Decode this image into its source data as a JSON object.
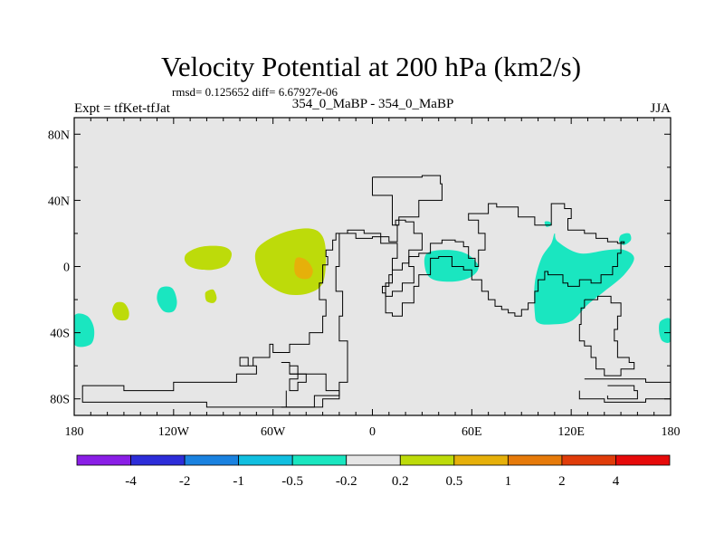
{
  "chart_data": {
    "type": "contour-map",
    "title": "Velocity Potential at 200 hPa (km2/s)",
    "stats_text": "rmsd= 0.125652 diff= 6.67927e-06",
    "left_label": "Expt = tfKet-tfJat",
    "center_label": "354_0_MaBP - 354_0_MaBP",
    "right_label": "JJA",
    "lon_range": [
      -180,
      180
    ],
    "lat_range": [
      -90,
      90
    ],
    "x_ticks": [
      {
        "value": -180,
        "label": "180"
      },
      {
        "value": -120,
        "label": "120W"
      },
      {
        "value": -60,
        "label": "60W"
      },
      {
        "value": 0,
        "label": "0"
      },
      {
        "value": 60,
        "label": "60E"
      },
      {
        "value": 120,
        "label": "120E"
      },
      {
        "value": 180,
        "label": "180"
      }
    ],
    "y_ticks": [
      {
        "value": 80,
        "label": "80N"
      },
      {
        "value": 40,
        "label": "40N"
      },
      {
        "value": 0,
        "label": "0"
      },
      {
        "value": -40,
        "label": "40S"
      },
      {
        "value": -80,
        "label": "80S"
      }
    ],
    "background_color": "#e6e6e6",
    "colorbar": {
      "colors": [
        "#8a1ee6",
        "#2d2dd9",
        "#1a82e0",
        "#11bfe0",
        "#1ae6c0",
        "#e6e6e6",
        "#bddb0a",
        "#e6b00a",
        "#e67a0a",
        "#e03c0a",
        "#e60a0a"
      ],
      "tick_labels": [
        "-4",
        "-2",
        "-1",
        "-0.5",
        "-0.2",
        "0.2",
        "0.5",
        "1",
        "2",
        "4"
      ]
    },
    "regions": [
      {
        "fill": "#bddb0a",
        "points": [
          [
            -70,
            10
          ],
          [
            -55,
            20
          ],
          [
            -38,
            23
          ],
          [
            -30,
            18
          ],
          [
            -28,
            5
          ],
          [
            -30,
            -10
          ],
          [
            -38,
            -16
          ],
          [
            -50,
            -17
          ],
          [
            -60,
            -13
          ],
          [
            -68,
            -5
          ]
        ]
      },
      {
        "fill": "#e6b00a",
        "points": [
          [
            -46,
            5
          ],
          [
            -40,
            4
          ],
          [
            -36,
            -2
          ],
          [
            -38,
            -7
          ],
          [
            -44,
            -7
          ],
          [
            -47,
            -3
          ]
        ]
      },
      {
        "fill": "#bddb0a",
        "points": [
          [
            -112,
            8
          ],
          [
            -103,
            12
          ],
          [
            -90,
            12
          ],
          [
            -85,
            8
          ],
          [
            -88,
            1
          ],
          [
            -97,
            -2
          ],
          [
            -108,
            -1
          ],
          [
            -113,
            3
          ]
        ]
      },
      {
        "fill": "#bddb0a",
        "points": [
          [
            -155,
            -22
          ],
          [
            -150,
            -22
          ],
          [
            -147,
            -27
          ],
          [
            -148,
            -32
          ],
          [
            -154,
            -32
          ],
          [
            -157,
            -27
          ]
        ]
      },
      {
        "fill": "#bddb0a",
        "points": [
          [
            -100,
            -15
          ],
          [
            -96,
            -14
          ],
          [
            -94,
            -19
          ],
          [
            -96,
            -22
          ],
          [
            -100,
            -21
          ],
          [
            -101,
            -17
          ]
        ]
      },
      {
        "fill": "#1ae6c0",
        "points": [
          [
            -128,
            -13
          ],
          [
            -121,
            -13
          ],
          [
            -118,
            -21
          ],
          [
            -120,
            -27
          ],
          [
            -126,
            -27
          ],
          [
            -130,
            -20
          ]
        ]
      },
      {
        "fill": "#1ae6c0",
        "points": [
          [
            -180,
            -30
          ],
          [
            -172,
            -30
          ],
          [
            -168,
            -38
          ],
          [
            -170,
            -47
          ],
          [
            -180,
            -47
          ]
        ]
      },
      {
        "fill": "#1ae6c0",
        "points": [
          [
            180,
            -32
          ],
          [
            174,
            -33
          ],
          [
            173,
            -39
          ],
          [
            175,
            -45
          ],
          [
            180,
            -45
          ]
        ]
      },
      {
        "fill": "#1ae6c0",
        "points": [
          [
            33,
            8
          ],
          [
            47,
            10
          ],
          [
            58,
            7
          ],
          [
            64,
            0
          ],
          [
            60,
            -6
          ],
          [
            50,
            -9
          ],
          [
            37,
            -8
          ],
          [
            32,
            -2
          ]
        ]
      },
      {
        "fill": "#1ae6c0",
        "points": [
          [
            110,
            20
          ],
          [
            112,
            15
          ],
          [
            125,
            8
          ],
          [
            142,
            10
          ],
          [
            152,
            10
          ],
          [
            158,
            5
          ],
          [
            152,
            -5
          ],
          [
            140,
            -15
          ],
          [
            130,
            -23
          ],
          [
            120,
            -33
          ],
          [
            108,
            -35
          ],
          [
            100,
            -34
          ],
          [
            98,
            -28
          ],
          [
            98,
            -10
          ],
          [
            102,
            5
          ],
          [
            108,
            14
          ]
        ]
      },
      {
        "fill": "#1ae6c0",
        "points": [
          [
            104,
            27
          ],
          [
            107,
            27
          ],
          [
            108,
            25
          ],
          [
            105,
            24
          ]
        ]
      },
      {
        "fill": "#1ae6c0",
        "points": [
          [
            150,
            19
          ],
          [
            155,
            20
          ],
          [
            156,
            16
          ],
          [
            152,
            13
          ],
          [
            149,
            15
          ]
        ]
      }
    ],
    "coastlines": [
      [
        [
          0,
          54
        ],
        [
          30,
          55
        ],
        [
          41,
          50
        ],
        [
          42,
          40
        ],
        [
          28,
          30
        ],
        [
          16,
          25
        ],
        [
          12,
          43
        ],
        [
          0,
          45
        ],
        [
          0,
          54
        ]
      ],
      [
        [
          -20,
          20
        ],
        [
          -10,
          17
        ],
        [
          0,
          18
        ],
        [
          10,
          15
        ],
        [
          15,
          25
        ],
        [
          14,
          28
        ],
        [
          20,
          27
        ],
        [
          25,
          20
        ],
        [
          30,
          10
        ],
        [
          22,
          0
        ],
        [
          25,
          -10
        ],
        [
          18,
          -15
        ],
        [
          12,
          -18
        ],
        [
          8,
          -16
        ],
        [
          6,
          -12
        ],
        [
          10,
          -5
        ],
        [
          12,
          5
        ],
        [
          15,
          14
        ],
        [
          5,
          20
        ],
        [
          -5,
          22
        ],
        [
          -15,
          20
        ],
        [
          -22,
          16
        ],
        [
          -24,
          10
        ],
        [
          -28,
          6
        ],
        [
          -27,
          1
        ],
        [
          -30,
          -10
        ],
        [
          -32,
          -20
        ],
        [
          -28,
          -30
        ],
        [
          -30,
          -40
        ],
        [
          -38,
          -47
        ],
        [
          -50,
          -52
        ],
        [
          -60,
          -47
        ],
        [
          -62,
          -55
        ],
        [
          -72,
          -60
        ],
        [
          -80,
          -55
        ],
        [
          -75,
          -60
        ],
        [
          -70,
          -65
        ],
        [
          -82,
          -70
        ],
        [
          -120,
          -75
        ],
        [
          -150,
          -72
        ],
        [
          -175,
          -78
        ],
        [
          -175,
          -82
        ],
        [
          -100,
          -85
        ],
        [
          -60,
          -85
        ],
        [
          -30,
          -80
        ],
        [
          -20,
          -70
        ],
        [
          -15,
          -60
        ],
        [
          -15,
          -45
        ],
        [
          -20,
          -30
        ],
        [
          -18,
          -15
        ],
        [
          -22,
          0
        ],
        [
          -20,
          10
        ],
        [
          -20,
          20
        ]
      ],
      [
        [
          -55,
          -58
        ],
        [
          -50,
          -60
        ],
        [
          -45,
          -68
        ],
        [
          -50,
          -75
        ],
        [
          -45,
          -70
        ],
        [
          -40,
          -65
        ],
        [
          -50,
          -58
        ]
      ],
      [
        [
          -50,
          -65
        ],
        [
          -35,
          -65
        ],
        [
          -28,
          -75
        ],
        [
          -20,
          -78
        ],
        [
          -35,
          -85
        ],
        [
          -55,
          -85
        ],
        [
          -52,
          -75
        ]
      ],
      [
        [
          60,
          32
        ],
        [
          70,
          38
        ],
        [
          75,
          36
        ],
        [
          88,
          30
        ],
        [
          98,
          25
        ],
        [
          108,
          28
        ],
        [
          108,
          38
        ],
        [
          116,
          35
        ],
        [
          120,
          29
        ],
        [
          118,
          22
        ],
        [
          128,
          20
        ],
        [
          135,
          17
        ],
        [
          142,
          15
        ],
        [
          148,
          14
        ],
        [
          152,
          15
        ],
        [
          150,
          8
        ],
        [
          148,
          0
        ],
        [
          145,
          -5
        ],
        [
          138,
          -10
        ],
        [
          132,
          -8
        ],
        [
          125,
          -12
        ],
        [
          118,
          -10
        ],
        [
          115,
          -5
        ],
        [
          106,
          -3
        ],
        [
          104,
          -8
        ],
        [
          100,
          -15
        ],
        [
          98,
          -22
        ],
        [
          94,
          -26
        ],
        [
          90,
          -30
        ],
        [
          86,
          -28
        ],
        [
          82,
          -26
        ],
        [
          78,
          -24
        ],
        [
          74,
          -20
        ],
        [
          70,
          -15
        ],
        [
          66,
          -8
        ],
        [
          60,
          -2
        ],
        [
          55,
          0
        ],
        [
          48,
          6
        ],
        [
          40,
          5
        ],
        [
          35,
          -5
        ],
        [
          28,
          -12
        ],
        [
          25,
          -22
        ],
        [
          18,
          -30
        ],
        [
          12,
          -28
        ],
        [
          8,
          -20
        ],
        [
          8,
          -10
        ],
        [
          12,
          -2
        ],
        [
          18,
          2
        ],
        [
          22,
          6
        ],
        [
          28,
          8
        ],
        [
          35,
          14
        ],
        [
          42,
          16
        ],
        [
          50,
          15
        ],
        [
          55,
          12
        ],
        [
          58,
          5
        ],
        [
          62,
          0
        ],
        [
          64,
          10
        ],
        [
          68,
          20
        ],
        [
          64,
          28
        ],
        [
          58,
          32
        ],
        [
          60,
          32
        ]
      ],
      [
        [
          128,
          -20
        ],
        [
          136,
          -18
        ],
        [
          144,
          -22
        ],
        [
          150,
          -30
        ],
        [
          148,
          -38
        ],
        [
          146,
          -45
        ],
        [
          148,
          -55
        ],
        [
          155,
          -58
        ],
        [
          158,
          -62
        ],
        [
          150,
          -66
        ],
        [
          140,
          -62
        ],
        [
          135,
          -55
        ],
        [
          132,
          -48
        ],
        [
          128,
          -45
        ],
        [
          125,
          -35
        ],
        [
          126,
          -25
        ],
        [
          128,
          -20
        ]
      ],
      [
        [
          128,
          -68
        ],
        [
          145,
          -68
        ],
        [
          165,
          -70
        ],
        [
          180,
          -72
        ],
        [
          180,
          -80
        ],
        [
          165,
          -82
        ],
        [
          140,
          -80
        ],
        [
          125,
          -75
        ]
      ],
      [
        [
          142,
          -72
        ],
        [
          158,
          -75
        ],
        [
          160,
          -80
        ],
        [
          150,
          -80
        ],
        [
          142,
          -78
        ]
      ]
    ]
  }
}
